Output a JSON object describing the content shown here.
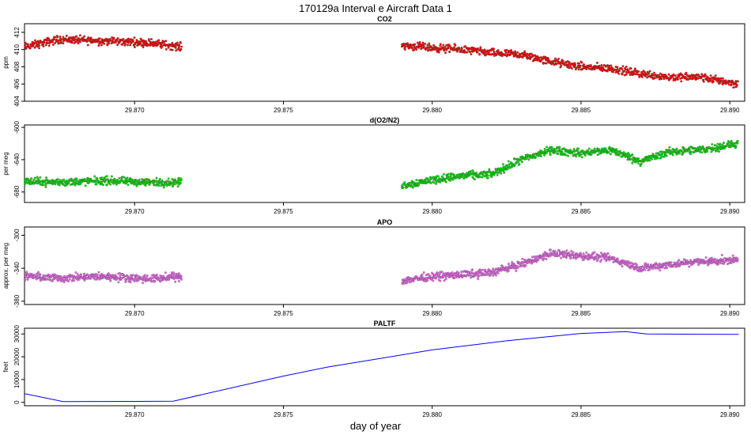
{
  "figure": {
    "title": "170129a   Interval e Aircraft Data 1",
    "xlabel": "day of year"
  },
  "chart_data": [
    {
      "type": "scatter",
      "title": "CO2",
      "ylabel": "ppm",
      "xlim": [
        29.8663,
        29.8905
      ],
      "ylim": [
        404,
        413
      ],
      "xticks": [
        "29.870",
        "29.875",
        "29.880",
        "29.885",
        "29.890"
      ],
      "yticks": [
        "404",
        "406",
        "408",
        "410",
        "412"
      ],
      "color": "#ff0000",
      "series": [
        {
          "segments": [
            {
              "x": [
                29.8663,
                29.8675,
                29.869,
                29.8705,
                29.8716
              ],
              "y": [
                410.3,
                411.2,
                411.0,
                410.8,
                410.3
              ]
            },
            {
              "x": [
                29.879,
                29.88,
                29.881,
                29.882,
                29.883,
                29.884,
                29.885,
                29.886,
                29.887,
                29.888,
                29.889,
                29.8903
              ],
              "y": [
                410.5,
                410.2,
                410.0,
                409.6,
                409.4,
                408.6,
                408.0,
                407.8,
                407.2,
                406.8,
                406.8,
                406.0
              ]
            }
          ]
        }
      ]
    },
    {
      "type": "scatter",
      "title": "d(O2/N2)",
      "ylabel": "per meg",
      "xlim": [
        29.8663,
        29.8905
      ],
      "ylim": [
        -693,
        -597
      ],
      "xticks": [
        "29.870",
        "29.875",
        "29.880",
        "29.885",
        "29.890"
      ],
      "yticks": [
        "-680",
        "-640",
        "-600"
      ],
      "color": "#00e000",
      "series": [
        {
          "segments": [
            {
              "x": [
                29.8663,
                29.8675,
                29.869,
                29.8705,
                29.8716
              ],
              "y": [
                -667,
                -668,
                -666,
                -668,
                -668
              ]
            },
            {
              "x": [
                29.879,
                29.88,
                29.881,
                29.882,
                29.883,
                29.884,
                29.885,
                29.886,
                29.887,
                29.888,
                29.889,
                29.8903
              ],
              "y": [
                -672,
                -665,
                -660,
                -658,
                -640,
                -628,
                -632,
                -628,
                -642,
                -630,
                -628,
                -620
              ]
            }
          ]
        }
      ]
    },
    {
      "type": "scatter",
      "title": "APO",
      "ylabel": "approx. per meg",
      "xlim": [
        29.8663,
        29.8905
      ],
      "ylim": [
        -384,
        -290
      ],
      "xticks": [
        "29.870",
        "29.875",
        "29.880",
        "29.885",
        "29.890"
      ],
      "yticks": [
        "-380",
        "-340",
        "-300"
      ],
      "color": "#ee66ee",
      "series": [
        {
          "segments": [
            {
              "x": [
                29.8663,
                29.8675,
                29.869,
                29.8705,
                29.8716
              ],
              "y": [
                -350,
                -352,
                -350,
                -353,
                -350
              ]
            },
            {
              "x": [
                29.879,
                29.88,
                29.881,
                29.882,
                29.883,
                29.884,
                29.885,
                29.886,
                29.887,
                29.888,
                29.889,
                29.8903
              ],
              "y": [
                -355,
                -350,
                -348,
                -345,
                -335,
                -322,
                -325,
                -328,
                -340,
                -335,
                -332,
                -330
              ]
            }
          ]
        }
      ]
    },
    {
      "type": "line",
      "title": "PALTF",
      "ylabel": "feet",
      "xlim": [
        29.8663,
        29.8905
      ],
      "ylim": [
        -1500,
        32500
      ],
      "xticks": [
        "29.870",
        "29.875",
        "29.880",
        "29.885",
        "29.890"
      ],
      "yticks": [
        "0",
        "10000",
        "20000",
        "30000"
      ],
      "color": "#0000ff",
      "series": [
        {
          "x": [
            29.8663,
            29.8676,
            29.87,
            29.8713,
            29.875,
            29.8765,
            29.88,
            29.8825,
            29.885,
            29.8865,
            29.8872,
            29.8903
          ],
          "y": [
            3800,
            300,
            400,
            500,
            11500,
            15500,
            23000,
            27000,
            30200,
            31000,
            30000,
            29800
          ]
        }
      ]
    }
  ]
}
